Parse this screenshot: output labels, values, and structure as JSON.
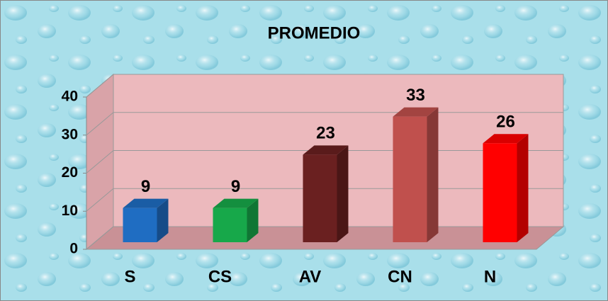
{
  "chart_data": {
    "type": "bar3d",
    "title": "PROMEDIO",
    "categories": [
      "S",
      "CS",
      "AV",
      "CN",
      "N"
    ],
    "values": [
      9,
      9,
      23,
      33,
      26
    ],
    "colors": [
      "#1f6dc2",
      "#17a84a",
      "#6a2020",
      "#c0504d",
      "#ff0000"
    ],
    "ylim": [
      0,
      40
    ],
    "yticks": [
      0,
      10,
      20,
      30,
      40
    ],
    "grid": true
  }
}
